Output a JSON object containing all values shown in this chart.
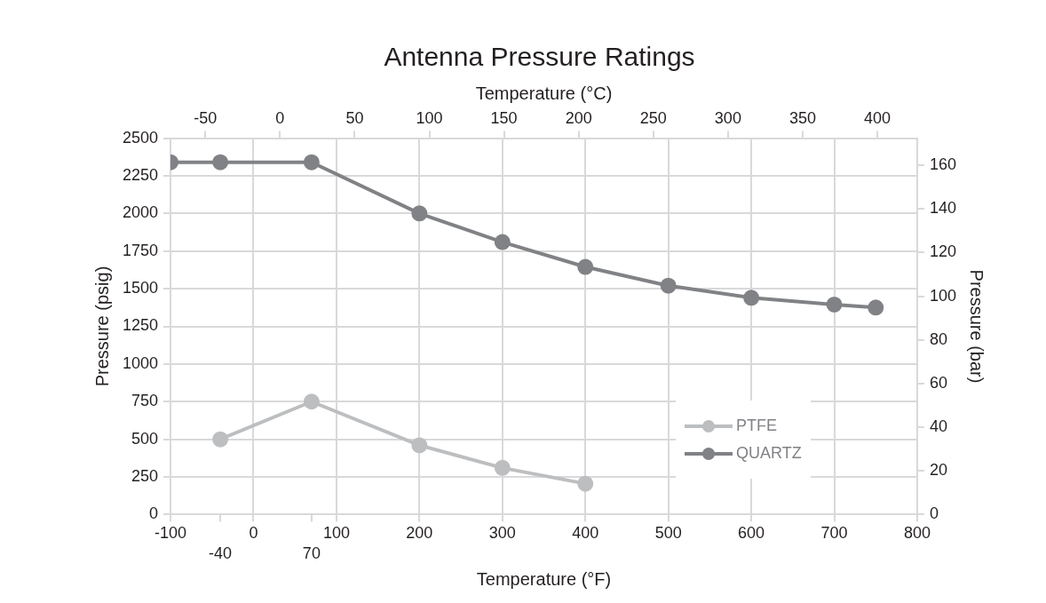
{
  "chart_data": {
    "type": "line",
    "title": "Antenna Pressure Ratings",
    "xlabel": "Temperature (°F)",
    "x2label": "Temperature (°C)",
    "ylabel": "Pressure (psig)",
    "y2label": "Pressure (bar)",
    "xlim": [
      -100,
      800
    ],
    "xticks": [
      -100,
      {
        "value": -40,
        "label": null
      },
      0,
      {
        "value": 70,
        "label": null
      },
      100,
      200,
      300,
      400,
      500,
      600,
      700,
      800
    ],
    "annotations": [
      "-40",
      "70"
    ],
    "x2lim": [
      -73.3,
      426.7
    ],
    "x2ticks": [
      -50,
      0,
      50,
      100,
      150,
      200,
      250,
      300,
      350,
      400
    ],
    "ylim": [
      0,
      2500
    ],
    "yticks": [
      0,
      250,
      500,
      750,
      1000,
      1250,
      1500,
      1750,
      2000,
      2250,
      2500
    ],
    "y2lim": [
      0,
      172.4
    ],
    "y2ticks": [
      0,
      20,
      40,
      60,
      80,
      100,
      120,
      140,
      160
    ],
    "grid": true,
    "legend": "bottom right",
    "marker": "circle",
    "line_style": "solid",
    "series": [
      {
        "name": "PTFE",
        "color": "#bcbec0",
        "x": [
          -40,
          70,
          200,
          300,
          400
        ],
        "values": [
          500,
          750,
          460,
          310,
          205
        ]
      },
      {
        "name": "QUARTZ",
        "color": "#808285",
        "x": [
          -100,
          -40,
          70,
          200,
          300,
          400,
          500,
          600,
          700,
          750
        ],
        "values": [
          2340,
          2340,
          2340,
          2000,
          1810,
          1645,
          1520,
          1440,
          1395,
          1375
        ]
      }
    ]
  }
}
